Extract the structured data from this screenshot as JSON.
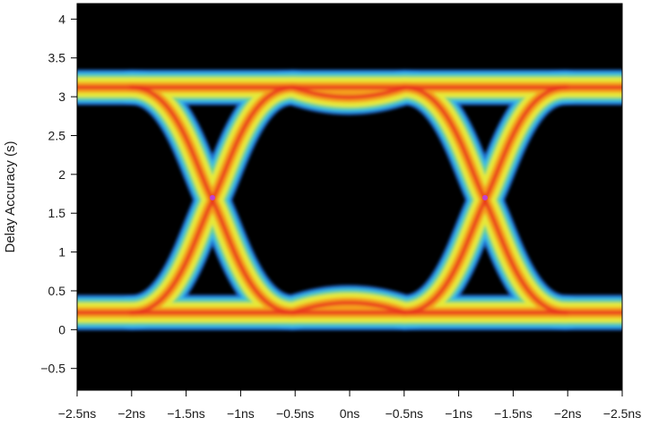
{
  "chart_data": {
    "type": "heatmap",
    "subtype": "eye-diagram",
    "title": "",
    "xlabel": "",
    "ylabel": "Delay Accuracy (s)",
    "x_tick_labels": [
      "−2.5ns",
      "−2ns",
      "−1.5ns",
      "−1ns",
      "−0.5ns",
      "0ns",
      "−0.5ns",
      "−1ns",
      "−1.5ns",
      "−2ns",
      "−2.5ns"
    ],
    "y_ticks": [
      -0.5,
      0,
      0.5,
      1,
      1.5,
      2,
      2.5,
      3,
      3.5,
      4
    ],
    "y_tick_labels": [
      "−0.5",
      "0",
      "0.5",
      "1",
      "1.5",
      "2",
      "2.5",
      "3",
      "3.5",
      "4"
    ],
    "ylim": [
      -0.78,
      4.2
    ],
    "background": "#000000",
    "grid": false,
    "levels": {
      "high_rail": 3.12,
      "low_rail": 0.22,
      "crossing_level": 1.7
    },
    "density_colors": {
      "outer": "#1f6fd6",
      "halo": "#38b8e8",
      "low": "#6ed48a",
      "mid": "#e6e838",
      "high": "#f59a1c",
      "peak": "#e8321e",
      "crossing_marker": "#c040d0"
    }
  }
}
